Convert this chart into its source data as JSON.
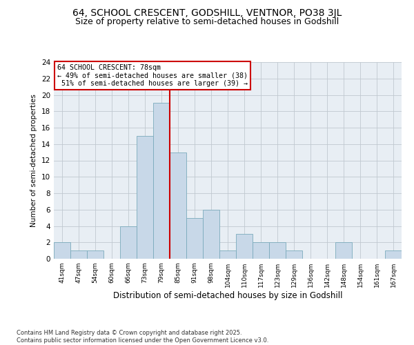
{
  "title1": "64, SCHOOL CRESCENT, GODSHILL, VENTNOR, PO38 3JL",
  "title2": "Size of property relative to semi-detached houses in Godshill",
  "xlabel": "Distribution of semi-detached houses by size in Godshill",
  "ylabel": "Number of semi-detached properties",
  "categories": [
    "41sqm",
    "47sqm",
    "54sqm",
    "60sqm",
    "66sqm",
    "73sqm",
    "79sqm",
    "85sqm",
    "91sqm",
    "98sqm",
    "104sqm",
    "110sqm",
    "117sqm",
    "123sqm",
    "129sqm",
    "136sqm",
    "142sqm",
    "148sqm",
    "154sqm",
    "161sqm",
    "167sqm"
  ],
  "values": [
    2,
    1,
    1,
    0,
    4,
    15,
    19,
    13,
    5,
    6,
    1,
    3,
    2,
    2,
    1,
    0,
    0,
    2,
    0,
    0,
    1
  ],
  "bar_color": "#c8d8e8",
  "bar_edge_color": "#7aaabb",
  "vline_x_index": 6,
  "vline_color": "#cc0000",
  "annotation_title": "64 SCHOOL CRESCENT: 78sqm",
  "annotation_line1": "← 49% of semi-detached houses are smaller (38)",
  "annotation_line2": " 51% of semi-detached houses are larger (39) →",
  "annotation_box_color": "#ffffff",
  "annotation_box_edge": "#cc0000",
  "ylim": [
    0,
    24
  ],
  "yticks": [
    0,
    2,
    4,
    6,
    8,
    10,
    12,
    14,
    16,
    18,
    20,
    22,
    24
  ],
  "bg_color": "#e8eef4",
  "footer": "Contains HM Land Registry data © Crown copyright and database right 2025.\nContains public sector information licensed under the Open Government Licence v3.0.",
  "title_fontsize": 10,
  "subtitle_fontsize": 9
}
